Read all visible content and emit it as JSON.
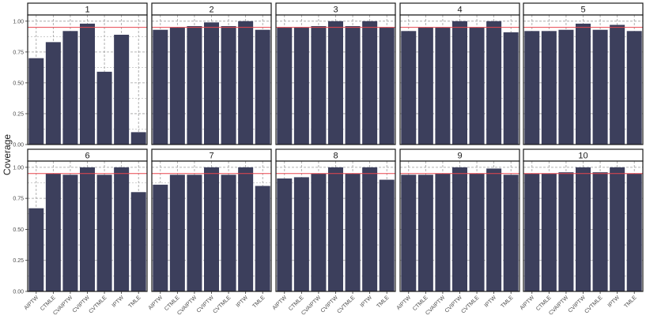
{
  "chart_data": {
    "type": "bar",
    "ylabel": "Coverage",
    "xlabel": "",
    "ylim": [
      0,
      1.05
    ],
    "yticks": [
      "0.00",
      "0.25",
      "0.50",
      "0.75",
      "1.00"
    ],
    "reference_line": 0.95,
    "colors": {
      "bar": "#3c3f5c",
      "reference": "#e8474f",
      "grid": "#9e9e9e",
      "strip_bg": "#ffffff"
    },
    "categories": [
      "AIPTW",
      "CTMLE",
      "CVAIPTW",
      "CVIPTW",
      "CVTMLE",
      "IPTW",
      "TMLE"
    ],
    "panels": [
      {
        "title": "1",
        "values": [
          0.7,
          0.83,
          0.92,
          0.98,
          0.59,
          0.89,
          0.1
        ]
      },
      {
        "title": "2",
        "values": [
          0.93,
          0.95,
          0.96,
          0.99,
          0.96,
          1.0,
          0.93
        ]
      },
      {
        "title": "3",
        "values": [
          0.95,
          0.95,
          0.96,
          1.0,
          0.96,
          1.0,
          0.95
        ]
      },
      {
        "title": "4",
        "values": [
          0.92,
          0.95,
          0.95,
          1.0,
          0.95,
          1.0,
          0.91
        ]
      },
      {
        "title": "5",
        "values": [
          0.92,
          0.92,
          0.93,
          0.98,
          0.93,
          0.97,
          0.92
        ]
      },
      {
        "title": "6",
        "values": [
          0.67,
          0.95,
          0.94,
          1.0,
          0.94,
          1.0,
          0.8
        ]
      },
      {
        "title": "7",
        "values": [
          0.86,
          0.94,
          0.94,
          1.0,
          0.94,
          1.0,
          0.85
        ]
      },
      {
        "title": "8",
        "values": [
          0.91,
          0.92,
          0.95,
          1.0,
          0.95,
          1.0,
          0.9
        ]
      },
      {
        "title": "9",
        "values": [
          0.94,
          0.94,
          0.95,
          1.0,
          0.95,
          0.99,
          0.94
        ]
      },
      {
        "title": "10",
        "values": [
          0.95,
          0.95,
          0.96,
          1.0,
          0.96,
          1.0,
          0.95
        ]
      }
    ]
  }
}
